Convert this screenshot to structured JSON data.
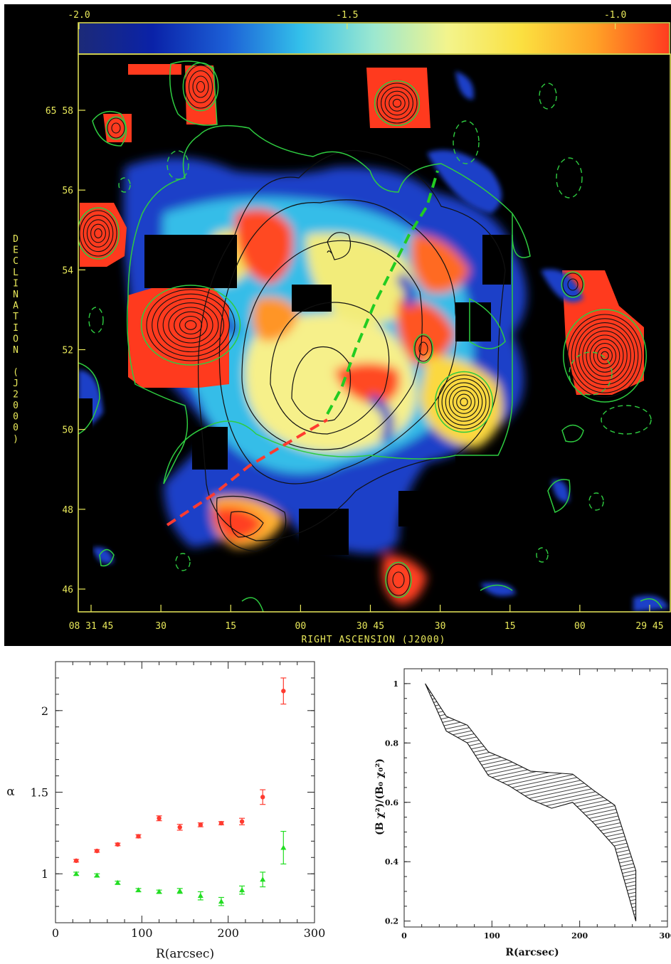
{
  "chart_data": [
    {
      "type": "heatmap",
      "colorbar": {
        "ticks": [
          "-2.0",
          "-1.5",
          "-1.0"
        ],
        "tick_values": [
          -2.0,
          -1.5,
          -1.0
        ],
        "range": [
          -2.0,
          -0.9
        ],
        "colors": [
          "#1c2a78",
          "#0a22a8",
          "#1c5fd6",
          "#33c0ea",
          "#9ce8d0",
          "#f3f48c",
          "#fbe040",
          "#ffa226",
          "#ff3d1f"
        ]
      },
      "xlabel": "RIGHT ASCENSION (J2000)",
      "ylabel": "DECLINATION (J2000)",
      "x_ticks": [
        "08 31 45",
        "30",
        "15",
        "00",
        "30 45",
        "30",
        "15",
        "00",
        "29 45"
      ],
      "y_ticks": [
        "46",
        "48",
        "50",
        "52",
        "54",
        "56",
        "65 58"
      ],
      "y_tick_values": [
        46,
        48,
        50,
        52,
        54,
        56,
        58
      ],
      "label_color": "#e8e85a",
      "overlay_lines": [
        {
          "color": "#ff3b30",
          "style": "dashed"
        },
        {
          "color": "#22cc22",
          "style": "dashed"
        }
      ],
      "contour_colors": {
        "radio": "#111111",
        "positive": "#2ecc40",
        "negative": "#2ecc40"
      }
    },
    {
      "type": "scatter",
      "xlabel": "R(arcsec)",
      "ylabel": "α",
      "xlim": [
        0,
        300
      ],
      "ylim": [
        0.7,
        2.3
      ],
      "x_ticks": [
        "0",
        "100",
        "200",
        "300"
      ],
      "x_tick_values": [
        0,
        100,
        200,
        300
      ],
      "y_ticks": [
        "1",
        "1.5",
        "2"
      ],
      "y_tick_values": [
        1,
        1.5,
        2
      ],
      "series": [
        {
          "color": "#ff3b30",
          "marker": "circle",
          "x": [
            24,
            48,
            72,
            96,
            120,
            144,
            168,
            192,
            216,
            240,
            264
          ],
          "y": [
            1.08,
            1.14,
            1.18,
            1.23,
            1.34,
            1.285,
            1.3,
            1.31,
            1.32,
            1.47,
            2.12
          ],
          "err": [
            0.008,
            0.008,
            0.008,
            0.01,
            0.015,
            0.018,
            0.012,
            0.01,
            0.02,
            0.045,
            0.08
          ]
        },
        {
          "color": "#22dd22",
          "marker": "triangle",
          "x": [
            24,
            48,
            72,
            96,
            120,
            144,
            168,
            192,
            216,
            240,
            264
          ],
          "y": [
            1.0,
            0.99,
            0.945,
            0.9,
            0.89,
            0.895,
            0.865,
            0.83,
            0.9,
            0.965,
            1.16
          ],
          "err": [
            0.01,
            0.01,
            0.01,
            0.01,
            0.01,
            0.015,
            0.025,
            0.025,
            0.025,
            0.045,
            0.1
          ]
        }
      ]
    },
    {
      "type": "area",
      "xlabel": "R(arcsec)",
      "ylabel": "(B χ²)/(B₀ χ₀²)",
      "xlim": [
        0,
        300
      ],
      "ylim": [
        0.18,
        1.05
      ],
      "x_ticks": [
        "0",
        "100",
        "200",
        "300"
      ],
      "x_tick_values": [
        0,
        100,
        200,
        300
      ],
      "y_ticks": [
        "0.2",
        "0.4",
        "0.6",
        "0.8",
        "1"
      ],
      "y_tick_values": [
        0.2,
        0.4,
        0.6,
        0.8,
        1.0
      ],
      "x": [
        24,
        48,
        72,
        96,
        120,
        144,
        168,
        192,
        216,
        240,
        264
      ],
      "upper": [
        1.0,
        0.89,
        0.86,
        0.77,
        0.74,
        0.705,
        0.7,
        0.695,
        0.64,
        0.59,
        0.37
      ],
      "lower": [
        1.0,
        0.84,
        0.8,
        0.69,
        0.655,
        0.61,
        0.58,
        0.6,
        0.53,
        0.45,
        0.2
      ]
    }
  ]
}
